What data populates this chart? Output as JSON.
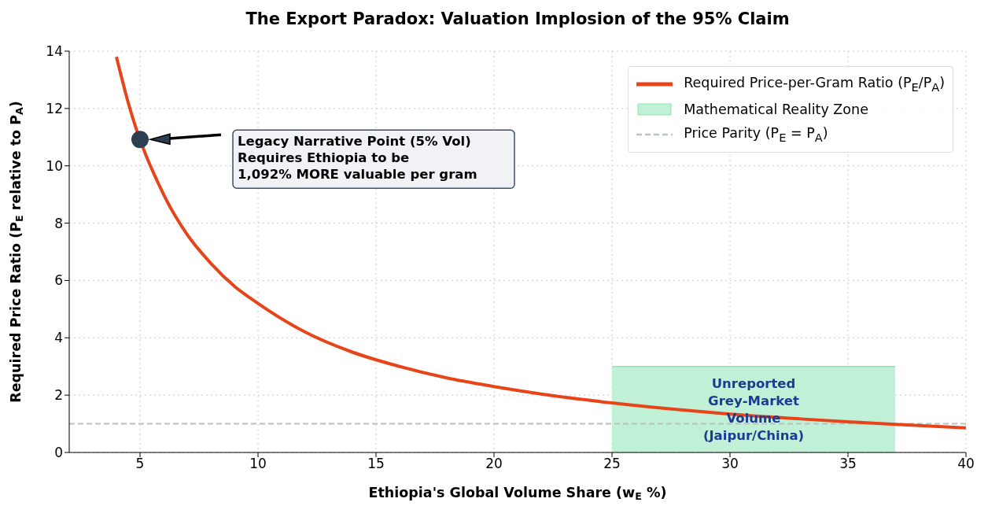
{
  "chart_data": {
    "type": "line",
    "title": "The Export Paradox: Valuation Implosion of the 95% Claim",
    "xlabel": "Ethiopia's Global Volume Share (w$_{E}$ %)",
    "ylabel": "Required Price Ratio (P$_{E}$ relative to P$_{A}$)",
    "xlim": [
      2,
      40
    ],
    "xticks": [
      5,
      10,
      15,
      20,
      25,
      30,
      35,
      40
    ],
    "ylim": [
      0,
      14
    ],
    "yticks": [
      0,
      2,
      4,
      6,
      8,
      10,
      12,
      14
    ],
    "grid": true,
    "legend": "top right",
    "series": [
      {
        "name": "Required Price-per-Gram Ratio (P$_{E}$/P$_{A}$)",
        "color": "#e8441a",
        "x": [
          4,
          4.5,
          6,
          7,
          8,
          9,
          10,
          12,
          14,
          16,
          18,
          20,
          22,
          25,
          28,
          30,
          33,
          35,
          37,
          40
        ],
        "values": [
          13.8,
          12.2,
          9.0,
          7.6,
          6.6,
          5.8,
          5.2,
          4.2,
          3.5,
          3.0,
          2.6,
          2.3,
          2.04,
          1.73,
          1.48,
          1.34,
          1.17,
          1.07,
          0.98,
          0.86
        ]
      },
      {
        "type": "area",
        "name": "Mathematical Reality Zone",
        "color": "#c0f0d6",
        "x": [
          25,
          37
        ],
        "values": [
          3,
          3
        ]
      },
      {
        "type": "scatter",
        "color": "#2c3e50",
        "marker": "circle",
        "x": [
          5
        ],
        "values": [
          10.92
        ]
      }
    ],
    "ref_lines": [
      {
        "axis": "y",
        "value": 1,
        "label": "Price Parity (P$_{E}$ = P$_{A}$)",
        "color": "#b8c2c0",
        "line_style": "dashed"
      }
    ],
    "annotations": [
      "Legacy Narrative Point (5% Vol)\nRequires Ethiopia to be\n1,092% MORE valuable per gram",
      "Unreported\nGrey-Market\nVolume\n(Jaipur/China)"
    ]
  }
}
